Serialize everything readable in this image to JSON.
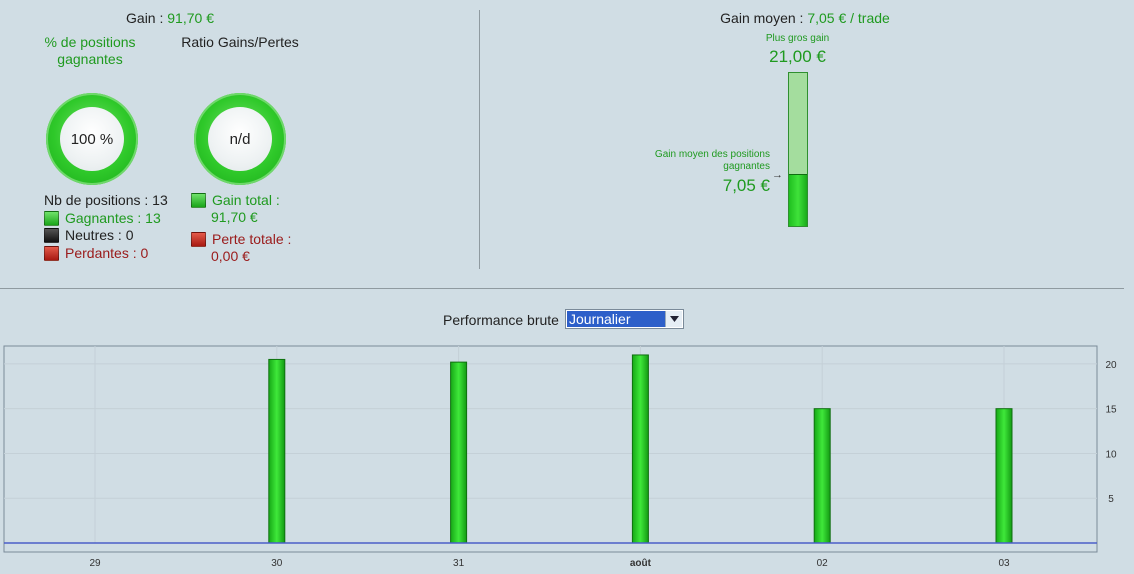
{
  "summary": {
    "gain_prefix": "Gain : ",
    "gain_value": "91,70 €",
    "pct_label": "% de positions gagnantes",
    "ratio_label": "Ratio Gains/Pertes",
    "pct_value": "100 %",
    "ratio_value": "n/d",
    "progress_pct_winning": 100,
    "nb_positions": "Nb de positions : 13",
    "winning": "Gagnantes : 13",
    "neutral": "Neutres : 0",
    "losing": "Perdantes : 0",
    "gain_total_label": "Gain total :",
    "gain_total_value": "91,70 €",
    "loss_total_label": "Perte totale :",
    "loss_total_value": "0,00 €"
  },
  "average": {
    "title_prefix": "Gain moyen : ",
    "title_value": "7,05 € / trade",
    "biggest_label": "Plus gros gain",
    "biggest_value": "21,00 €",
    "avg_winning_label_line1": "Gain moyen des positions",
    "avg_winning_label_line2": "gagnantes",
    "avg_winning_value": "7,05 €",
    "arrow": "→",
    "bar_max": 21.0,
    "bar_fill": 7.05
  },
  "performance": {
    "label": "Performance brute",
    "period_selected": "Journalier"
  },
  "colors": {
    "positive": "#1f9a1f",
    "negative": "#9a1a1a",
    "bar": "#22c422",
    "baseline": "#4a5ec8"
  },
  "chart_data": {
    "type": "bar",
    "categories": [
      "29",
      "30",
      "31",
      "août",
      "02",
      "03"
    ],
    "bold_categories": [
      "août"
    ],
    "values": [
      0,
      20.5,
      20.2,
      21.0,
      15.0,
      15.0
    ],
    "ylim": [
      0,
      22
    ],
    "yticks": [
      5,
      10,
      15,
      20
    ],
    "grid": true,
    "title": "",
    "xlabel": "",
    "ylabel": ""
  }
}
